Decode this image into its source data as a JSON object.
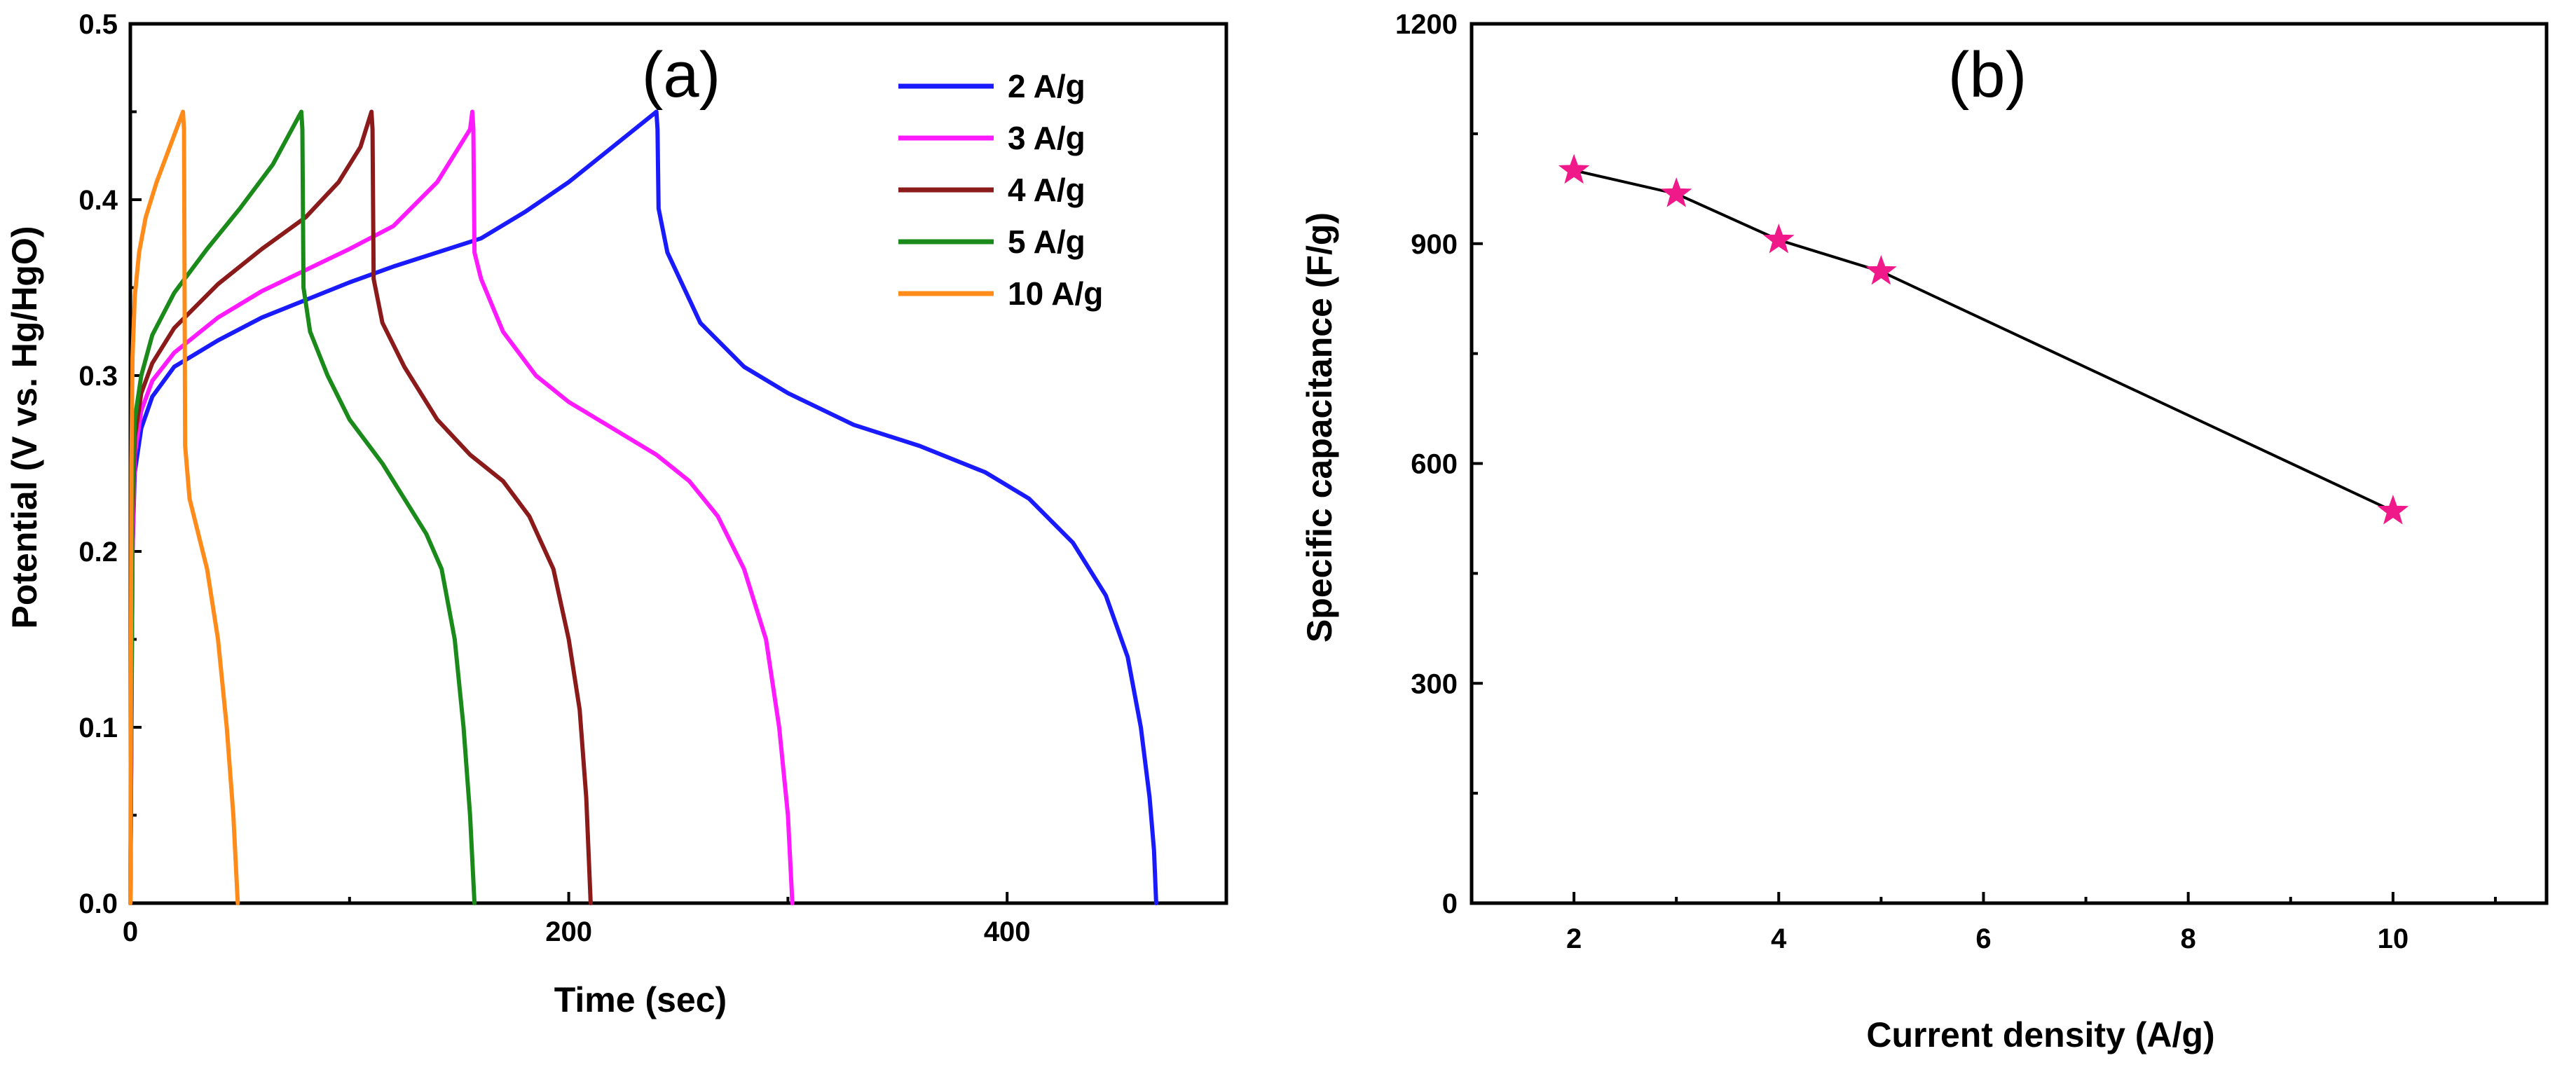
{
  "chart_data": [
    {
      "type": "line",
      "panel_label": "(a)",
      "xlabel": "Time (sec)",
      "ylabel": "Potential (V vs. Hg/HgO)",
      "xlim": [
        0,
        500
      ],
      "ylim": [
        0,
        0.5
      ],
      "xticks": [
        0,
        200,
        400
      ],
      "xtick_labels": [
        "0",
        "200",
        "400"
      ],
      "yticks": [
        0.0,
        0.1,
        0.2,
        0.3,
        0.4,
        0.5
      ],
      "ytick_labels": [
        "0.0",
        "0.1",
        "0.2",
        "0.3",
        "0.4",
        "0.5"
      ],
      "legend_position": "top-right",
      "series": [
        {
          "name": "2 A/g",
          "color": "#1a1aff",
          "points": [
            [
              0,
              0
            ],
            [
              1,
              0.2
            ],
            [
              2,
              0.245
            ],
            [
              5,
              0.27
            ],
            [
              10,
              0.288
            ],
            [
              20,
              0.305
            ],
            [
              40,
              0.32
            ],
            [
              60,
              0.333
            ],
            [
              80,
              0.343
            ],
            [
              100,
              0.353
            ],
            [
              120,
              0.362
            ],
            [
              140,
              0.37
            ],
            [
              160,
              0.378
            ],
            [
              180,
              0.393
            ],
            [
              200,
              0.41
            ],
            [
              220,
              0.43
            ],
            [
              239,
              0.449
            ],
            [
              240,
              0.45
            ],
            [
              240.5,
              0.44
            ],
            [
              241,
              0.395
            ],
            [
              245,
              0.37
            ],
            [
              260,
              0.33
            ],
            [
              280,
              0.305
            ],
            [
              300,
              0.29
            ],
            [
              330,
              0.272
            ],
            [
              360,
              0.26
            ],
            [
              390,
              0.245
            ],
            [
              410,
              0.23
            ],
            [
              430,
              0.205
            ],
            [
              445,
              0.175
            ],
            [
              455,
              0.14
            ],
            [
              461,
              0.1
            ],
            [
              465,
              0.06
            ],
            [
              467,
              0.03
            ],
            [
              468,
              0
            ]
          ]
        },
        {
          "name": "3 A/g",
          "color": "#ff1aff",
          "points": [
            [
              0,
              0
            ],
            [
              1,
              0.2
            ],
            [
              2,
              0.255
            ],
            [
              5,
              0.28
            ],
            [
              10,
              0.297
            ],
            [
              20,
              0.313
            ],
            [
              40,
              0.333
            ],
            [
              60,
              0.348
            ],
            [
              80,
              0.36
            ],
            [
              100,
              0.372
            ],
            [
              120,
              0.385
            ],
            [
              140,
              0.41
            ],
            [
              155,
              0.44
            ],
            [
              156,
              0.45
            ],
            [
              156.5,
              0.44
            ],
            [
              157,
              0.37
            ],
            [
              160,
              0.355
            ],
            [
              170,
              0.325
            ],
            [
              185,
              0.3
            ],
            [
              200,
              0.285
            ],
            [
              220,
              0.27
            ],
            [
              240,
              0.255
            ],
            [
              255,
              0.24
            ],
            [
              268,
              0.22
            ],
            [
              280,
              0.19
            ],
            [
              290,
              0.15
            ],
            [
              296,
              0.1
            ],
            [
              300,
              0.05
            ],
            [
              302,
              0
            ]
          ]
        },
        {
          "name": "4 A/g",
          "color": "#8b1a1a",
          "points": [
            [
              0,
              0
            ],
            [
              1,
              0.22
            ],
            [
              2,
              0.265
            ],
            [
              5,
              0.29
            ],
            [
              10,
              0.307
            ],
            [
              20,
              0.327
            ],
            [
              40,
              0.352
            ],
            [
              60,
              0.372
            ],
            [
              80,
              0.39
            ],
            [
              95,
              0.41
            ],
            [
              105,
              0.43
            ],
            [
              110,
              0.45
            ],
            [
              110.5,
              0.44
            ],
            [
              111,
              0.355
            ],
            [
              115,
              0.33
            ],
            [
              125,
              0.305
            ],
            [
              140,
              0.275
            ],
            [
              155,
              0.255
            ],
            [
              170,
              0.24
            ],
            [
              182,
              0.22
            ],
            [
              193,
              0.19
            ],
            [
              200,
              0.15
            ],
            [
              205,
              0.11
            ],
            [
              208,
              0.06
            ],
            [
              210,
              0
            ]
          ]
        },
        {
          "name": "5 A/g",
          "color": "#1a8a1a",
          "points": [
            [
              0,
              0
            ],
            [
              1,
              0.23
            ],
            [
              2,
              0.275
            ],
            [
              5,
              0.3
            ],
            [
              10,
              0.323
            ],
            [
              20,
              0.347
            ],
            [
              35,
              0.372
            ],
            [
              50,
              0.395
            ],
            [
              65,
              0.42
            ],
            [
              78,
              0.45
            ],
            [
              78.5,
              0.44
            ],
            [
              79,
              0.35
            ],
            [
              82,
              0.325
            ],
            [
              90,
              0.3
            ],
            [
              100,
              0.275
            ],
            [
              115,
              0.25
            ],
            [
              125,
              0.23
            ],
            [
              135,
              0.21
            ],
            [
              142,
              0.19
            ],
            [
              148,
              0.15
            ],
            [
              152,
              0.1
            ],
            [
              155,
              0.05
            ],
            [
              157,
              0
            ]
          ]
        },
        {
          "name": "10 A/g",
          "color": "#ff8c1a",
          "points": [
            [
              0,
              0
            ],
            [
              0.5,
              0.25
            ],
            [
              1,
              0.31
            ],
            [
              2,
              0.345
            ],
            [
              4,
              0.37
            ],
            [
              7,
              0.39
            ],
            [
              12,
              0.41
            ],
            [
              18,
              0.43
            ],
            [
              24,
              0.45
            ],
            [
              24.5,
              0.44
            ],
            [
              25,
              0.26
            ],
            [
              27,
              0.23
            ],
            [
              31,
              0.21
            ],
            [
              35,
              0.19
            ],
            [
              40,
              0.15
            ],
            [
              44,
              0.1
            ],
            [
              47,
              0.05
            ],
            [
              49,
              0
            ]
          ]
        }
      ]
    },
    {
      "type": "line",
      "panel_label": "(b)",
      "xlabel": "Current density (A/g)",
      "ylabel": "Specific capacitance (F/g)",
      "xlim": [
        1,
        11.5
      ],
      "ylim": [
        0,
        1200
      ],
      "xticks": [
        2,
        4,
        6,
        8,
        10
      ],
      "xtick_labels": [
        "2",
        "4",
        "6",
        "8",
        "10"
      ],
      "yticks": [
        0,
        300,
        600,
        900,
        1200
      ],
      "ytick_labels": [
        "0",
        "300",
        "600",
        "900",
        "1200"
      ],
      "marker": "star",
      "line_color": "#000000",
      "marker_color": "#f0198a",
      "x": [
        2,
        3,
        4,
        5,
        10
      ],
      "y": [
        1000,
        968,
        905,
        862,
        535
      ]
    }
  ]
}
